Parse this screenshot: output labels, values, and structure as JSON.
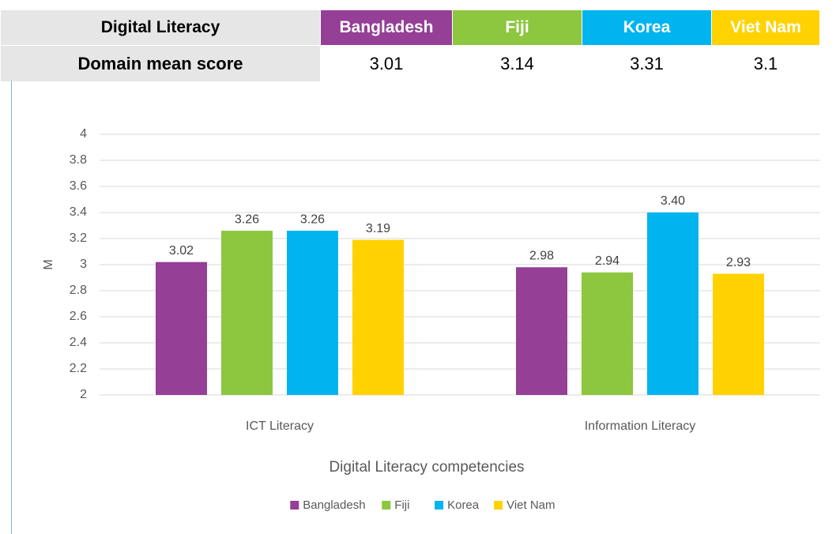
{
  "table": {
    "header": [
      "Digital Literacy",
      "Bangladesh",
      "Fiji",
      "Korea",
      "Viet Nam"
    ],
    "rows": [
      [
        "Domain mean score",
        "3.01",
        "3.14",
        "3.31",
        "3.1"
      ]
    ]
  },
  "chart_data": {
    "type": "bar",
    "categories": [
      "ICT Literacy",
      "Information Literacy"
    ],
    "series": [
      {
        "name": "Bangladesh",
        "color": "#953f96",
        "values": [
          3.02,
          2.98
        ],
        "value_labels": [
          "3.02",
          "2.98"
        ]
      },
      {
        "name": "Fiji",
        "color": "#8dc63f",
        "values": [
          3.26,
          2.94
        ],
        "value_labels": [
          "3.26",
          "2.94"
        ]
      },
      {
        "name": "Korea",
        "color": "#00b5ef",
        "values": [
          3.26,
          3.4
        ],
        "value_labels": [
          "3.26",
          "3.40"
        ]
      },
      {
        "name": "Viet Nam",
        "color": "#ffd200",
        "values": [
          3.19,
          2.93
        ],
        "value_labels": [
          "3.19",
          "2.93"
        ]
      }
    ],
    "ylabel": "M",
    "xlabel": "Digital Literacy competencies",
    "ylim": [
      2,
      4
    ],
    "yticks": [
      2,
      2.2,
      2.4,
      2.6,
      2.8,
      3,
      3.2,
      3.4,
      3.6,
      3.8,
      4
    ],
    "grid": true,
    "legend": "bottom"
  }
}
